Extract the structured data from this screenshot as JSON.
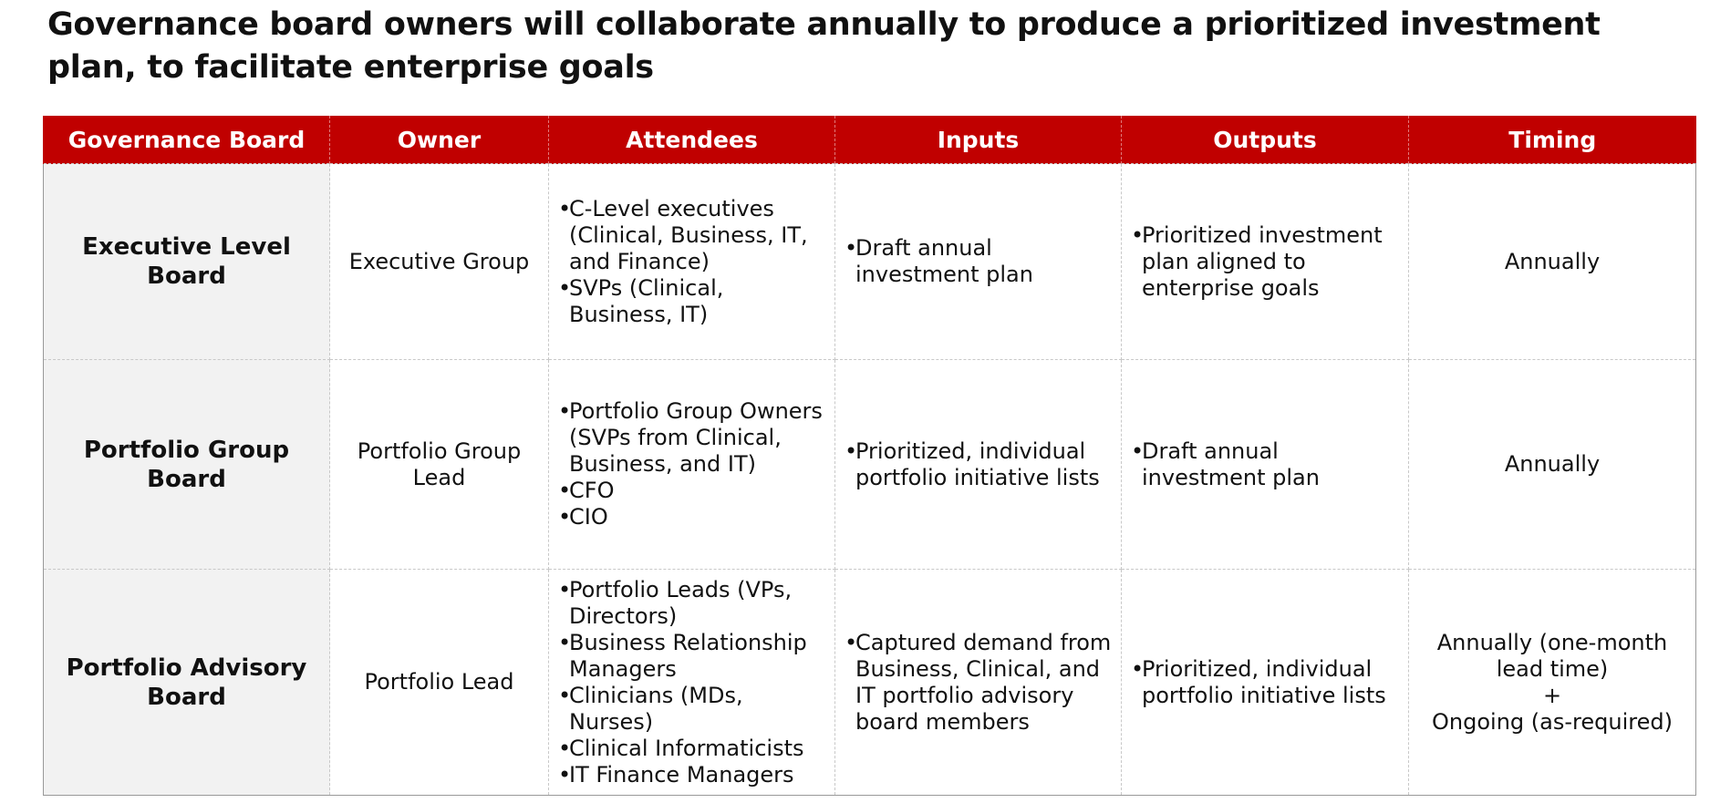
{
  "title": "Governance board owners will collaborate annually to produce a prioritized investment plan, to facilitate enterprise goals",
  "colors": {
    "header_bg": "#c00000",
    "header_text": "#ffffff",
    "board_bg": "#f2f2f2"
  },
  "table": {
    "headers": [
      "Governance Board",
      "Owner",
      "Attendees",
      "Inputs",
      "Outputs",
      "Timing"
    ],
    "rows": [
      {
        "board": "Executive Level Board",
        "owner": "Executive Group",
        "attendees": [
          "C-Level executives (Clinical, Business, IT, and Finance)",
          "SVPs (Clinical, Business, IT)"
        ],
        "inputs": [
          "Draft annual investment plan"
        ],
        "outputs": [
          "Prioritized investment plan aligned to enterprise goals"
        ],
        "timing": [
          "Annually"
        ]
      },
      {
        "board": "Portfolio Group Board",
        "owner": "Portfolio Group Lead",
        "attendees": [
          "Portfolio Group Owners (SVPs from Clinical, Business, and IT)",
          "CFO",
          "CIO"
        ],
        "inputs": [
          "Prioritized, individual portfolio initiative lists"
        ],
        "outputs": [
          "Draft annual investment plan"
        ],
        "timing": [
          "Annually"
        ]
      },
      {
        "board": "Portfolio Advisory Board",
        "owner": "Portfolio Lead",
        "attendees": [
          "Portfolio Leads (VPs, Directors)",
          "Business Relationship Managers",
          "Clinicians (MDs, Nurses)",
          "Clinical Informaticists",
          "IT Finance Managers"
        ],
        "inputs": [
          "Captured demand from Business, Clinical, and IT portfolio advisory board members"
        ],
        "outputs": [
          "Prioritized, individual portfolio initiative lists"
        ],
        "timing": [
          "Annually (one-month lead time)",
          "+",
          "Ongoing (as-required)"
        ]
      }
    ]
  }
}
